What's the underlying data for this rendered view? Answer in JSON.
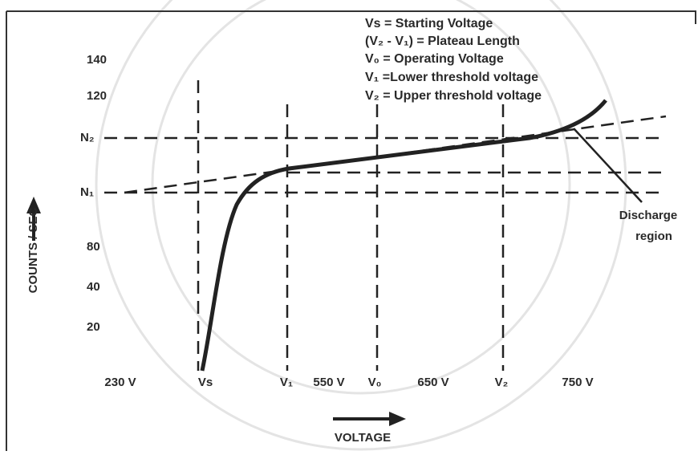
{
  "legend": [
    "Vs = Starting Voltage",
    "(V₂ - V₁) = Plateau Length",
    "V₀ = Operating Voltage",
    "V₁ =Lower threshold voltage",
    "V₂ = Upper threshold voltage"
  ],
  "y_labels": [
    "140",
    "120",
    "N₂",
    "N₁",
    "80",
    "40",
    "20"
  ],
  "x_labels": [
    "230 V",
    "Vs",
    "V₁",
    "550 V",
    "V₀",
    "650 V",
    "V₂",
    "750 V"
  ],
  "y_axis_title": "COUNTS / SEC",
  "x_axis_title": "VOLTAGE",
  "annotation": [
    "Discharge",
    "region"
  ]
}
